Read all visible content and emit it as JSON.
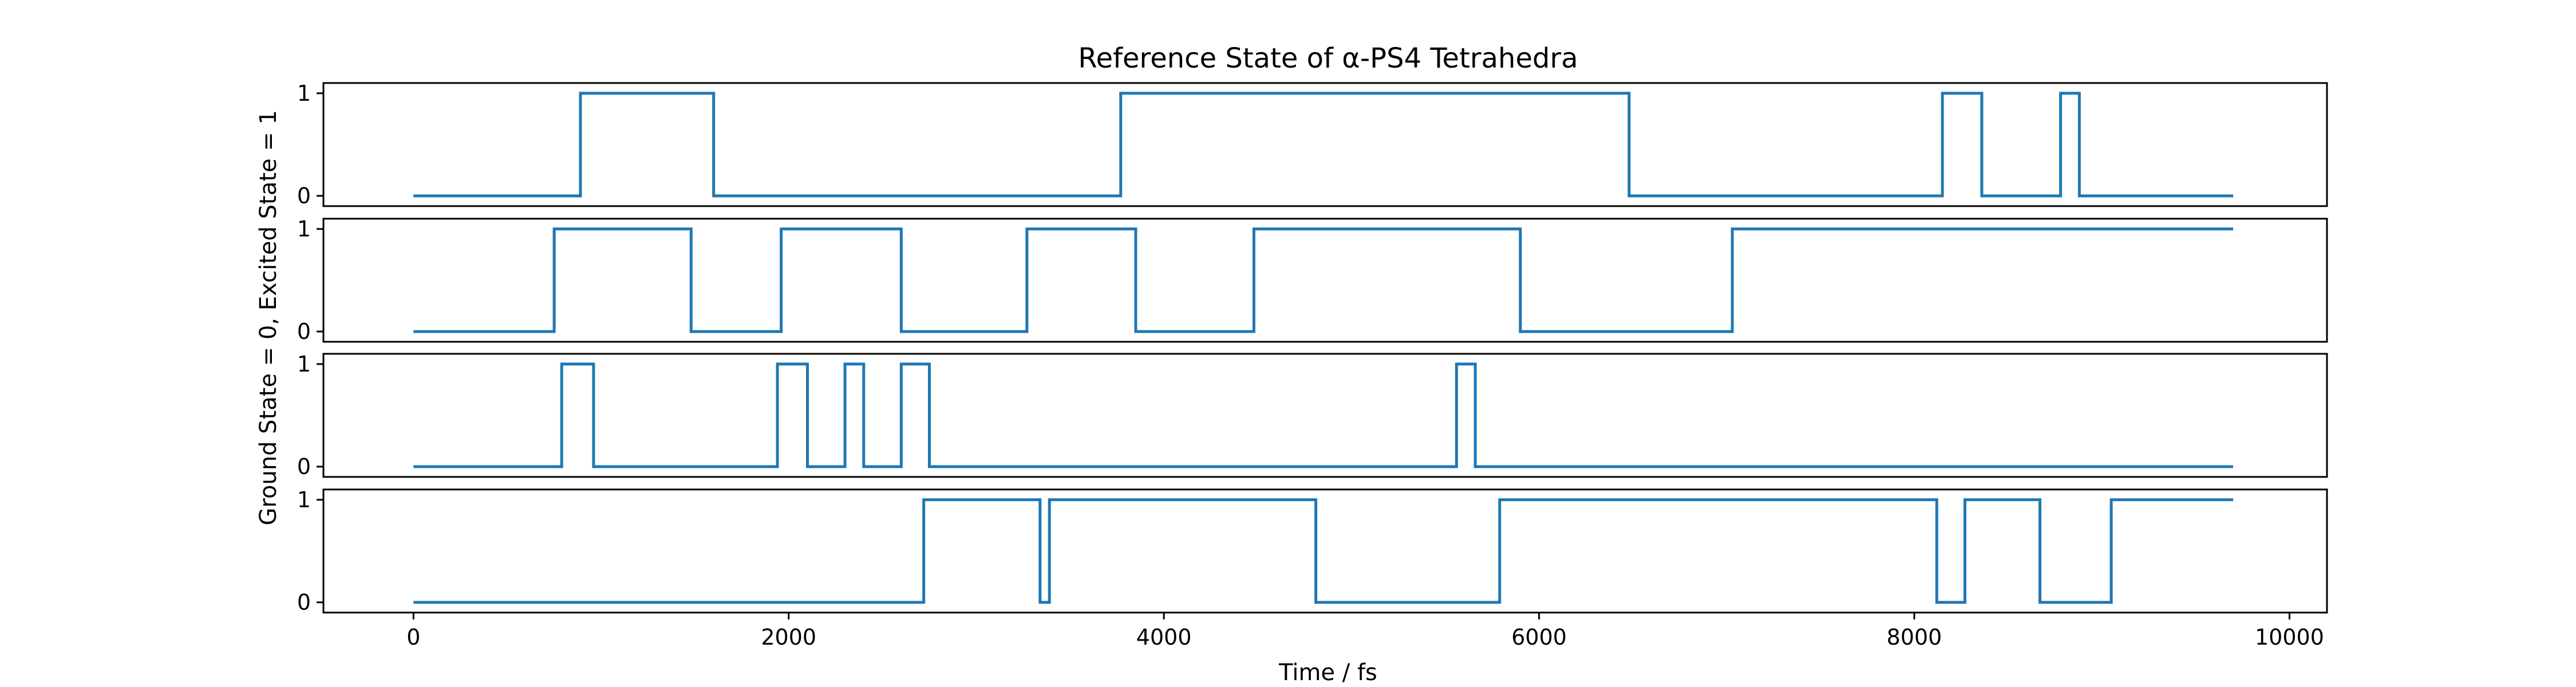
{
  "chart_data": {
    "type": "line",
    "title": "Reference State of α-PS4 Tetrahedra",
    "xlabel": "Time / fs",
    "ylabel": "Ground State = 0, Excited State = 1",
    "xlim": [
      -480,
      10200
    ],
    "ylim": [
      -0.1,
      1.1
    ],
    "x_ticks": [
      0,
      2000,
      4000,
      6000,
      8000,
      10000
    ],
    "y_ticks": [
      0,
      1
    ],
    "grid": false,
    "line_color": "#1f77b4",
    "x_end": 9700,
    "panels": [
      {
        "name": "",
        "initial": 0,
        "transitions": [
          [
            890,
            1
          ],
          [
            1600,
            0
          ],
          [
            3770,
            1
          ],
          [
            6480,
            0
          ],
          [
            8150,
            1
          ],
          [
            8360,
            0
          ],
          [
            8780,
            1
          ],
          [
            8880,
            0
          ]
        ]
      },
      {
        "name": "",
        "initial": 0,
        "transitions": [
          [
            750,
            1
          ],
          [
            1480,
            0
          ],
          [
            1960,
            1
          ],
          [
            2600,
            0
          ],
          [
            3270,
            1
          ],
          [
            3850,
            0
          ],
          [
            4480,
            1
          ],
          [
            5900,
            0
          ],
          [
            7030,
            1
          ]
        ]
      },
      {
        "name": "",
        "initial": 0,
        "transitions": [
          [
            790,
            1
          ],
          [
            960,
            0
          ],
          [
            1940,
            1
          ],
          [
            2100,
            0
          ],
          [
            2300,
            1
          ],
          [
            2400,
            0
          ],
          [
            2600,
            1
          ],
          [
            2750,
            0
          ],
          [
            5560,
            1
          ],
          [
            5660,
            0
          ]
        ]
      },
      {
        "name": "",
        "initial": 0,
        "transitions": [
          [
            2720,
            1
          ],
          [
            3340,
            0
          ],
          [
            3390,
            1
          ],
          [
            4810,
            0
          ],
          [
            5790,
            1
          ],
          [
            8120,
            0
          ],
          [
            8270,
            1
          ],
          [
            8670,
            0
          ],
          [
            9050,
            1
          ]
        ]
      }
    ]
  }
}
